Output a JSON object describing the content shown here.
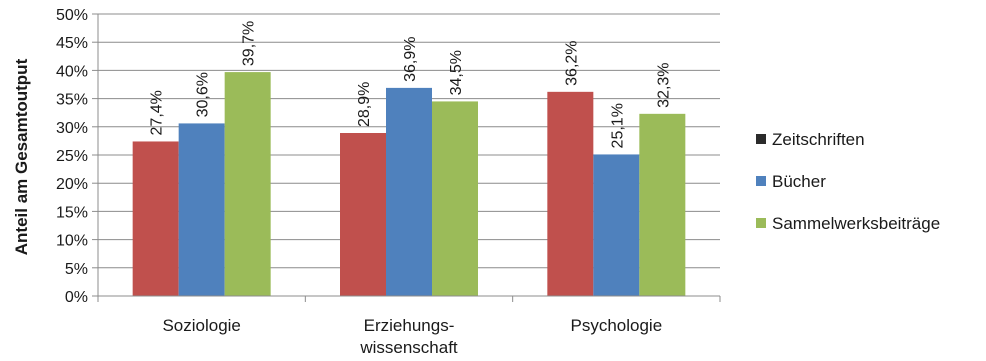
{
  "chart_data": {
    "type": "bar",
    "categories": [
      "Soziologie",
      "Erziehungs-\nwissenschaft",
      "Psychologie"
    ],
    "series": [
      {
        "name": "Zeitschriften",
        "values": [
          27.4,
          28.9,
          36.2
        ],
        "labels": [
          "27,4%",
          "28,9%",
          "36,2%"
        ]
      },
      {
        "name": "Bücher",
        "values": [
          30.6,
          36.9,
          25.1
        ],
        "labels": [
          "30,6%",
          "36,9%",
          "25,1%"
        ]
      },
      {
        "name": "Sammelwerksbeiträge",
        "values": [
          39.7,
          34.5,
          32.3
        ],
        "labels": [
          "39,7%",
          "34,5%",
          "32,3%"
        ]
      }
    ],
    "ylabel": "Anteil am Gesamtoutput",
    "xlabel": "",
    "ylim": [
      0,
      50
    ],
    "yticks": [
      0,
      5,
      10,
      15,
      20,
      25,
      30,
      35,
      40,
      45,
      50
    ],
    "ytick_labels": [
      "0%",
      "5%",
      "10%",
      "15%",
      "20%",
      "25%",
      "30%",
      "35%",
      "40%",
      "45%",
      "50%"
    ],
    "grid": true,
    "legend_position": "right",
    "legend_marker_colors": [
      "#2b2b2b",
      "#4f81bd",
      "#9bbb59"
    ],
    "bar_colors": [
      "#c0504d",
      "#4f81bd",
      "#9bbb59"
    ]
  }
}
